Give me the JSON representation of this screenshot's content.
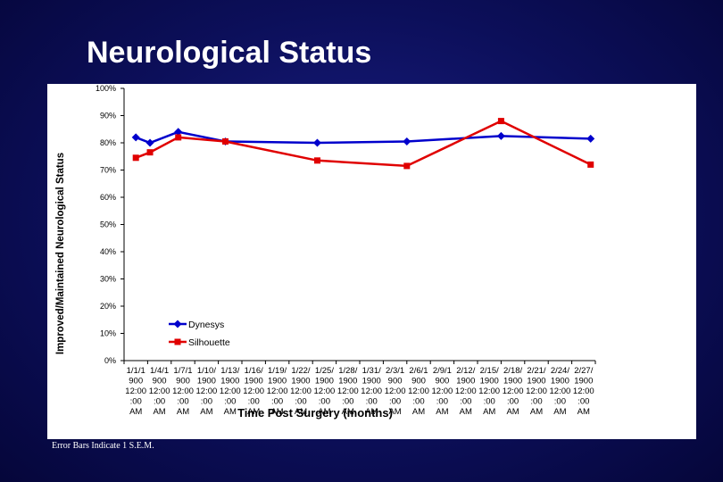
{
  "slide": {
    "title": "Neurological Status",
    "footnote": "Error Bars Indicate 1 S.E.M."
  },
  "chart_data": {
    "type": "line",
    "title": "",
    "xlabel": "Time Post Surgery (months)",
    "ylabel": "Improved/Maintained Neurological Status",
    "ylim": [
      0,
      100
    ],
    "y_ticks": [
      "0%",
      "10%",
      "20%",
      "30%",
      "40%",
      "50%",
      "60%",
      "70%",
      "80%",
      "90%",
      "100%"
    ],
    "categories": [
      [
        "1/1/1",
        "900",
        "12:00",
        ":00",
        "AM"
      ],
      [
        "1/4/1",
        "900",
        "12:00",
        ":00",
        "AM"
      ],
      [
        "1/7/1",
        "900",
        "12:00",
        ":00",
        "AM"
      ],
      [
        "1/10/",
        "1900",
        "12:00",
        ":00",
        "AM"
      ],
      [
        "1/13/",
        "1900",
        "12:00",
        ":00",
        "AM"
      ],
      [
        "1/16/",
        "1900",
        "12:00",
        ":00",
        "AM"
      ],
      [
        "1/19/",
        "1900",
        "12:00",
        ":00",
        "AM"
      ],
      [
        "1/22/",
        "1900",
        "12:00",
        ":00",
        "AM"
      ],
      [
        "1/25/",
        "1900",
        "12:00",
        ":00",
        "AM"
      ],
      [
        "1/28/",
        "1900",
        "12:00",
        ":00",
        "AM"
      ],
      [
        "1/31/",
        "1900",
        "12:00",
        ":00",
        "AM"
      ],
      [
        "2/3/1",
        "900",
        "12:00",
        ":00",
        "AM"
      ],
      [
        "2/6/1",
        "900",
        "12:00",
        ":00",
        "AM"
      ],
      [
        "2/9/1",
        "900",
        "12:00",
        ":00",
        "AM"
      ],
      [
        "2/12/",
        "1900",
        "12:00",
        ":00",
        "AM"
      ],
      [
        "2/15/",
        "1900",
        "12:00",
        ":00",
        "AM"
      ],
      [
        "2/18/",
        "1900",
        "12:00",
        ":00",
        "AM"
      ],
      [
        "2/21/",
        "1900",
        "12:00",
        ":00",
        "AM"
      ],
      [
        "2/24/",
        "1900",
        "12:00",
        ":00",
        "AM"
      ],
      [
        "2/27/",
        "1900",
        "12:00",
        ":00",
        "AM"
      ]
    ],
    "series": [
      {
        "name": "Dynesys",
        "color": "#0000cc",
        "marker": "diamond",
        "points": [
          [
            0,
            82
          ],
          [
            0.6,
            80
          ],
          [
            1.8,
            84
          ],
          [
            3.8,
            80.5
          ],
          [
            7.7,
            80
          ],
          [
            11.5,
            80.5
          ],
          [
            15.5,
            82.5
          ],
          [
            19.3,
            81.5
          ]
        ]
      },
      {
        "name": "Silhouette",
        "color": "#e00000",
        "marker": "square",
        "points": [
          [
            0,
            74.5
          ],
          [
            0.6,
            76.5
          ],
          [
            1.8,
            82
          ],
          [
            3.8,
            80.5
          ],
          [
            7.7,
            73.5
          ],
          [
            11.5,
            71.5
          ],
          [
            15.5,
            88
          ],
          [
            19.3,
            72
          ]
        ]
      }
    ],
    "legend_position": "bottom-left inside plot",
    "grid": false
  }
}
